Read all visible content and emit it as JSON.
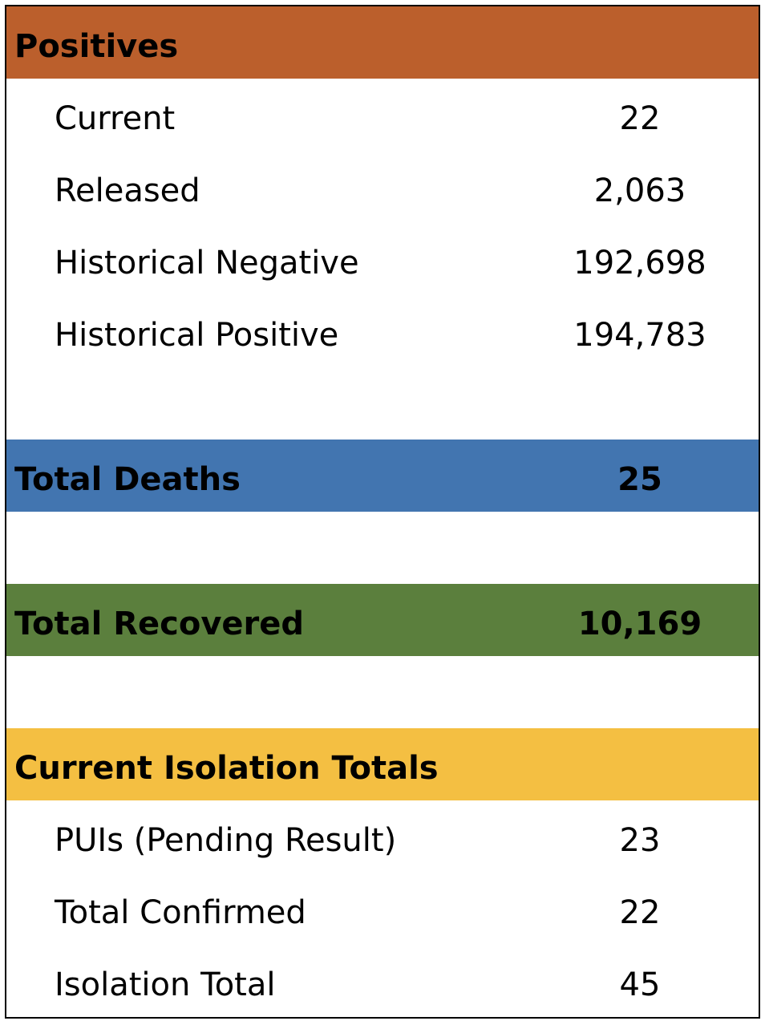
{
  "colors": {
    "positives_header": "#BB5F2C",
    "deaths_header": "#4275B0",
    "recovered_header": "#5B7F3D",
    "isolation_header": "#F4BF42"
  },
  "positives": {
    "title": "Positives",
    "rows": [
      {
        "label": "Current",
        "value": "22"
      },
      {
        "label": "Released",
        "value": "2,063"
      },
      {
        "label": "Historical Negative",
        "value": "192,698"
      },
      {
        "label": "Historical Positive",
        "value": "194,783"
      }
    ]
  },
  "deaths": {
    "title": "Total Deaths",
    "value": "25"
  },
  "recovered": {
    "title": "Total Recovered",
    "value": "10,169"
  },
  "isolation": {
    "title": "Current Isolation Totals",
    "rows": [
      {
        "label": "PUIs (Pending Result)",
        "value": "23"
      },
      {
        "label": "Total Confirmed",
        "value": "22"
      },
      {
        "label": "Isolation Total",
        "value": "45"
      }
    ]
  }
}
